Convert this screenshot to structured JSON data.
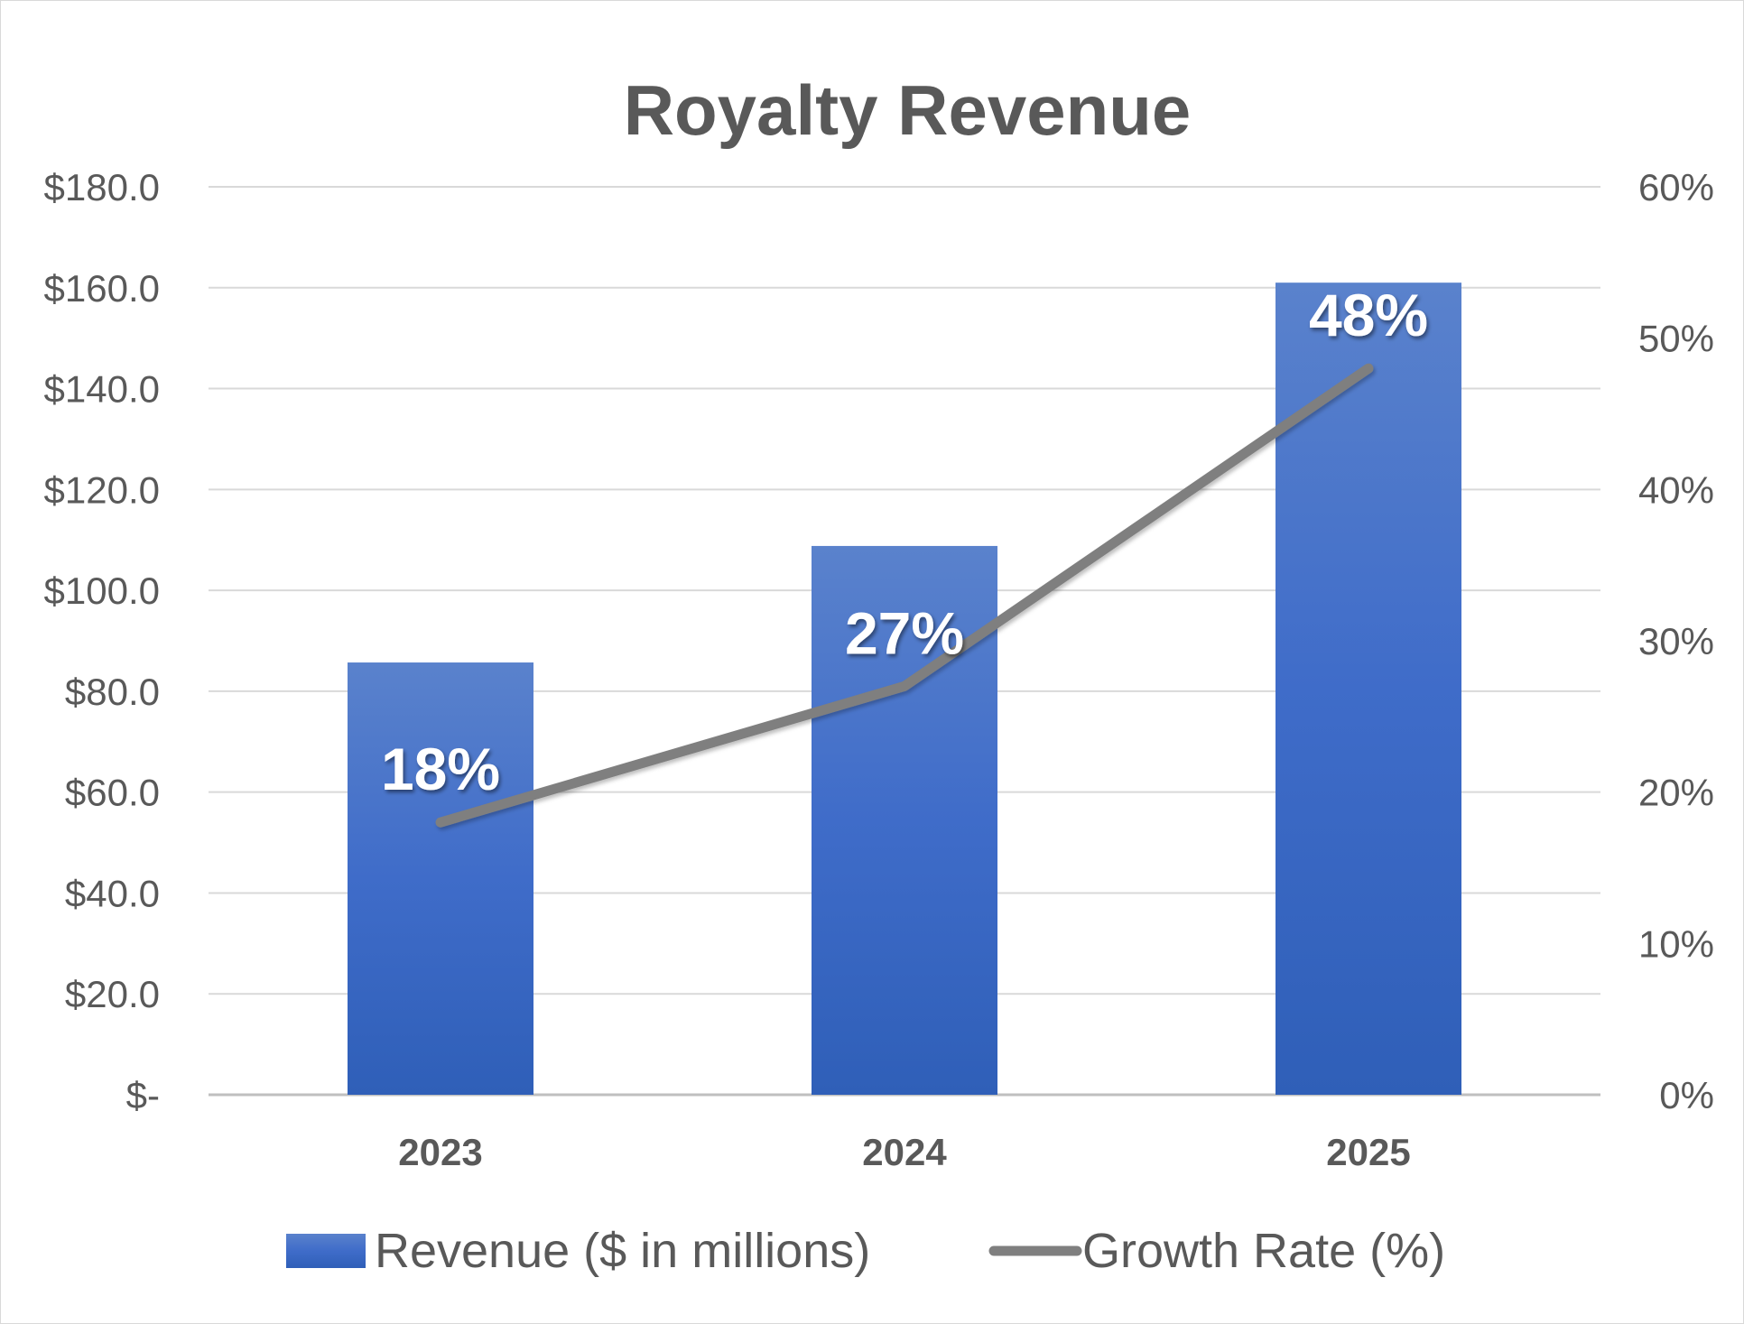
{
  "chart_data": {
    "type": "bar",
    "title": "Royalty Revenue",
    "categories": [
      "2023",
      "2024",
      "2025"
    ],
    "series": [
      {
        "name": "Revenue ($ in millions)",
        "kind": "bar",
        "axis": "left",
        "color": "#4472C4",
        "values": [
          85.7,
          108.8,
          161.0
        ]
      },
      {
        "name": "Growth Rate (%)",
        "kind": "line",
        "axis": "right",
        "color": "#7F7F7F",
        "values": [
          18,
          27,
          48
        ],
        "data_labels": [
          "18%",
          "27%",
          "48%"
        ]
      }
    ],
    "y_left": {
      "min": 0,
      "max": 180,
      "ticks": [
        0,
        20,
        40,
        60,
        80,
        100,
        120,
        140,
        160,
        180
      ],
      "tick_labels": [
        "$-",
        "$20.0",
        "$40.0",
        "$60.0",
        "$80.0",
        "$100.0",
        "$120.0",
        "$140.0",
        "$160.0",
        "$180.0"
      ]
    },
    "y_right": {
      "min": 0,
      "max": 60,
      "ticks": [
        0,
        10,
        20,
        30,
        40,
        50,
        60
      ],
      "tick_labels": [
        "0%",
        "10%",
        "20%",
        "30%",
        "40%",
        "50%",
        "60%"
      ]
    },
    "grid": true,
    "legend_position": "bottom"
  }
}
